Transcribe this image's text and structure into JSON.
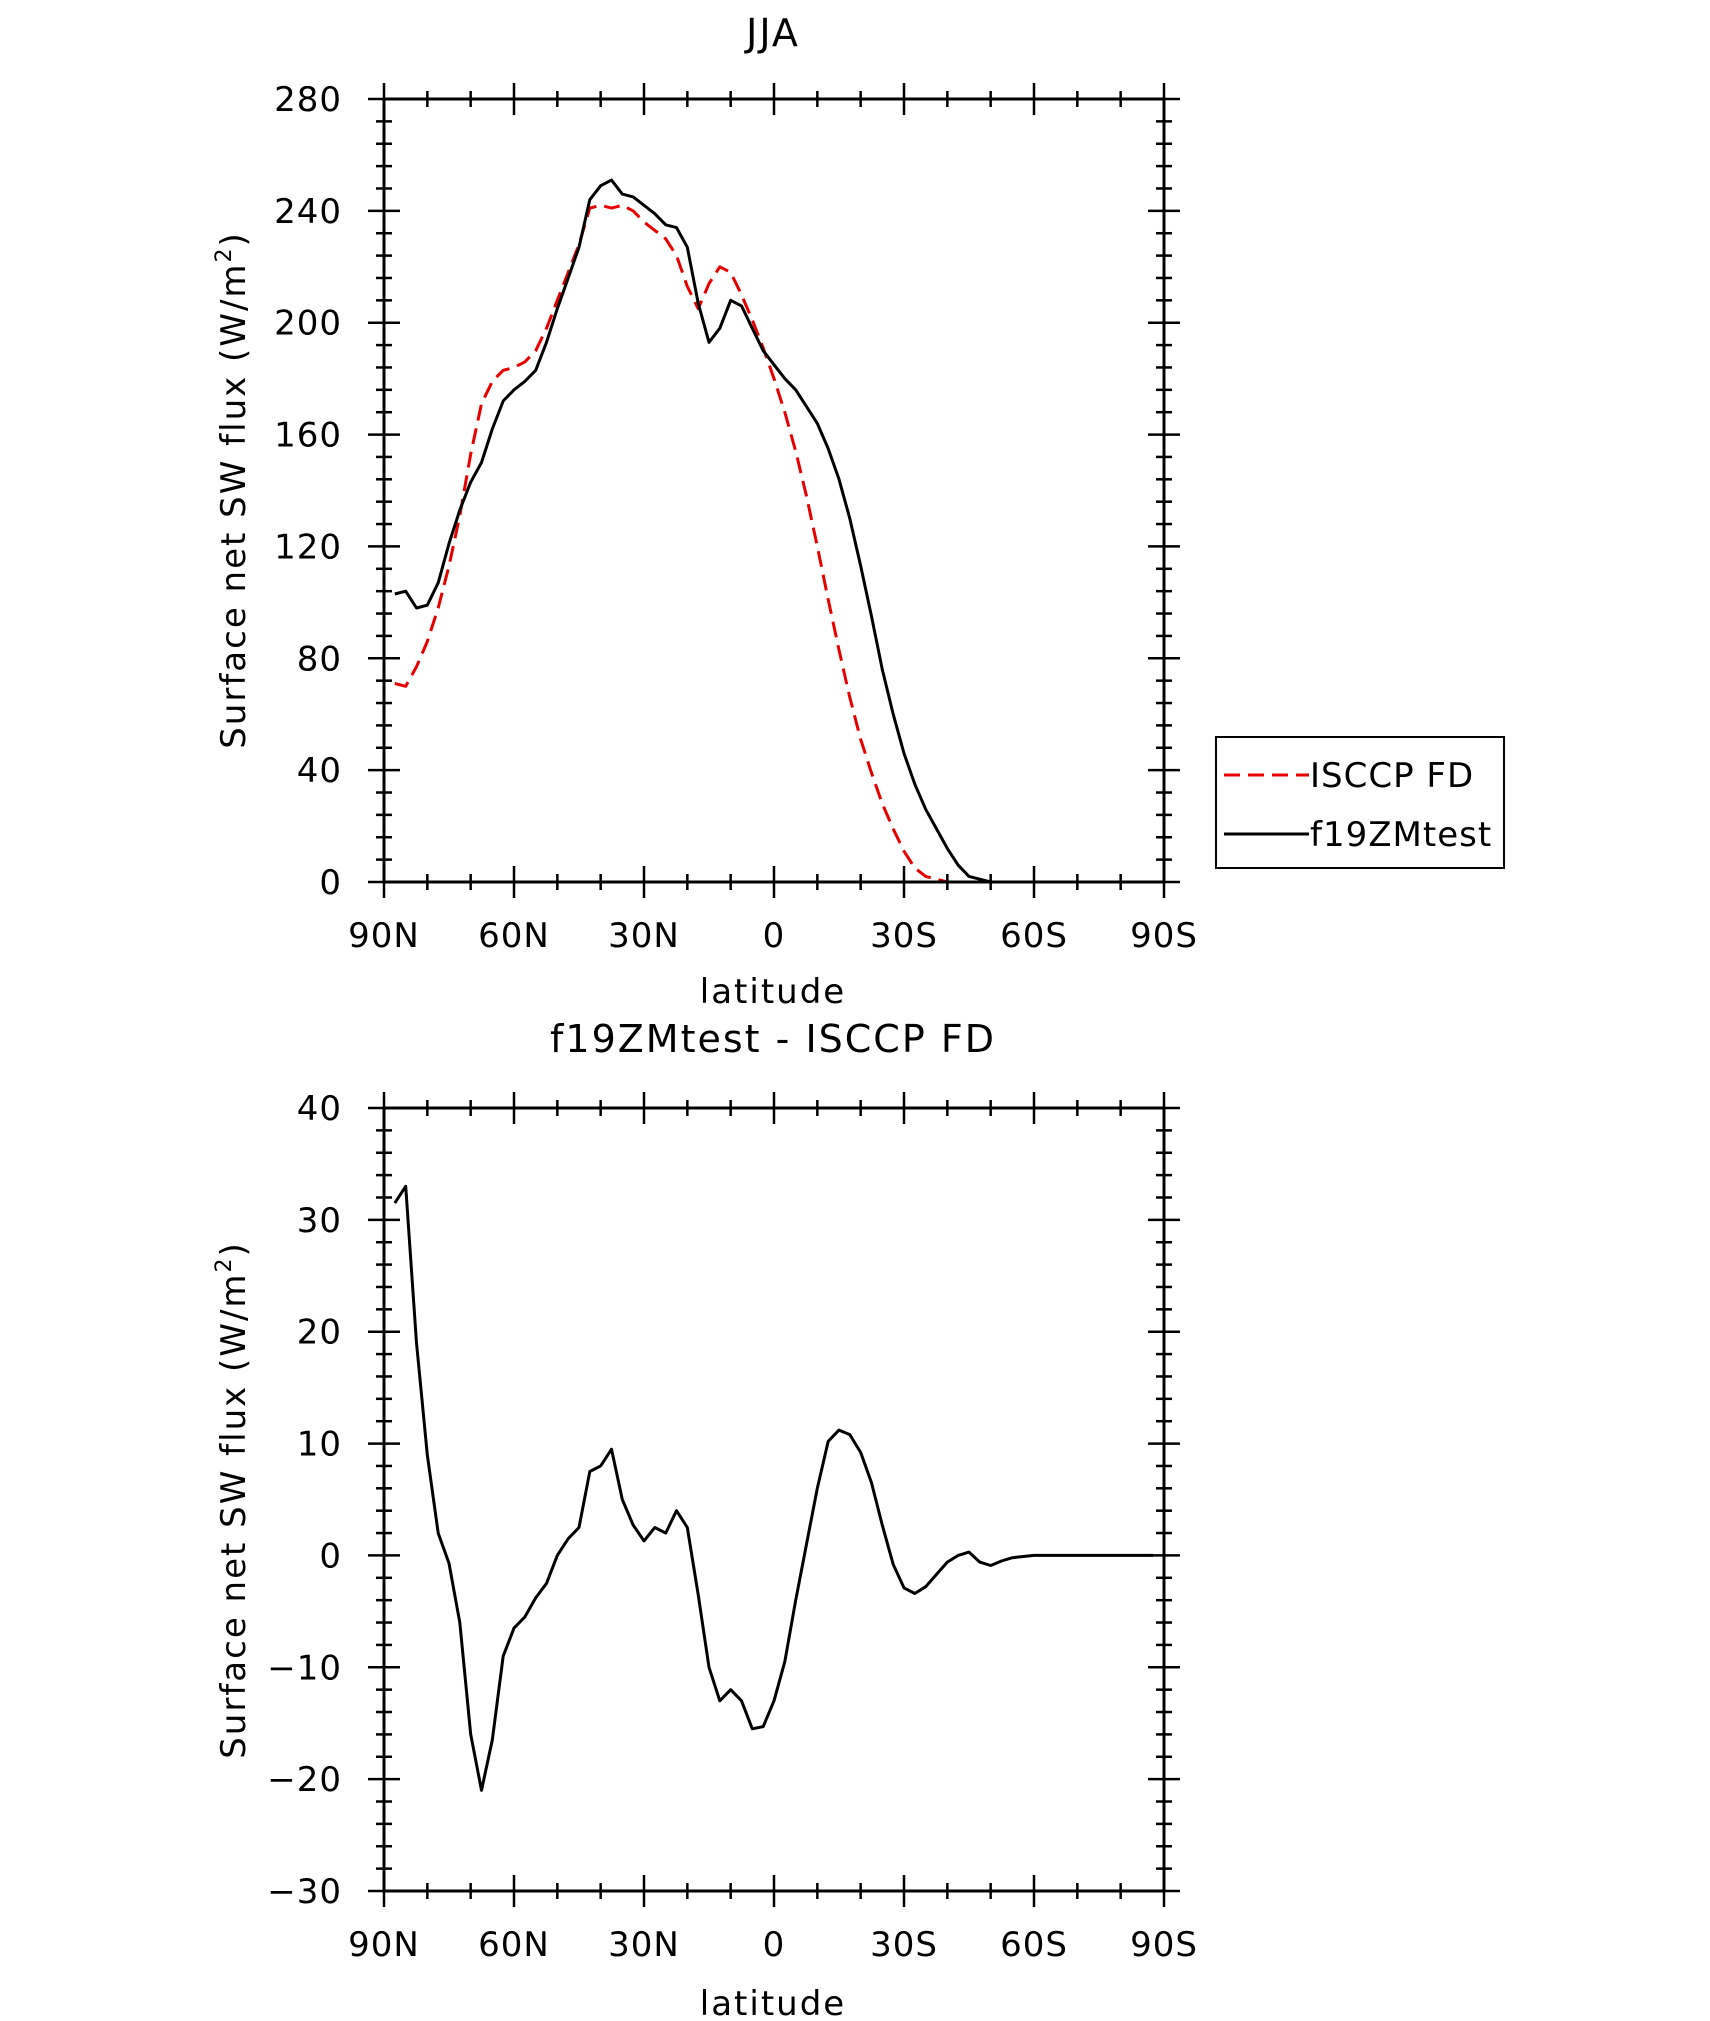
{
  "chart_data": [
    {
      "type": "line",
      "title": "JJA",
      "xlabel": "latitude",
      "ylabel": "Surface net SW flux (W/m2)",
      "ylim": [
        0,
        280
      ],
      "y_ticks": [
        0,
        40,
        80,
        120,
        160,
        200,
        240,
        280
      ],
      "x_ticks": [
        "90N",
        "60N",
        "30N",
        "0",
        "30S",
        "60S",
        "90S"
      ],
      "x_axis": "latitude from 90N (left) to 90S (right)",
      "legend": {
        "placement": "right of plot, lower",
        "entries": [
          "ISCCP FD",
          "f19ZMtest"
        ]
      },
      "series": [
        {
          "name": "ISCCP FD",
          "color": "#e60000",
          "style": "dashed",
          "x": [
            87.5,
            85,
            82.5,
            80,
            77.5,
            75,
            72.5,
            70,
            67.5,
            65,
            62.5,
            60,
            57.5,
            55,
            52.5,
            50,
            47.5,
            45,
            42.5,
            40,
            37.5,
            35,
            32.5,
            30,
            27.5,
            25,
            22.5,
            20,
            17.5,
            15,
            12.5,
            10,
            7.5,
            5,
            2.5,
            0,
            -2.5,
            -5,
            -7.5,
            -10,
            -12.5,
            -15,
            -17.5,
            -20,
            -22.5,
            -25,
            -27.5,
            -30,
            -32.5,
            -35,
            -37.5,
            -40,
            -42.5,
            -45,
            -47.5,
            -50,
            -52.5,
            -55,
            -57.5,
            -60,
            -62.5,
            -65,
            -67.5,
            -70,
            -72.5,
            -75,
            -77.5,
            -80,
            -82.5,
            -85,
            -87.5
          ],
          "y": [
            71,
            70,
            77,
            86,
            98,
            113,
            131,
            153,
            171,
            179,
            183,
            184,
            186,
            190,
            198,
            208,
            218,
            228,
            241,
            242,
            241,
            242,
            240,
            236,
            233,
            230,
            224,
            213,
            205,
            214,
            220,
            218,
            210,
            201,
            191,
            180,
            168,
            154,
            138,
            120,
            101,
            83,
            66,
            51,
            39,
            28,
            19,
            11,
            5,
            2,
            1,
            0,
            0,
            0,
            0,
            0,
            0,
            0,
            0,
            0,
            0,
            0,
            0,
            0,
            0,
            0,
            0,
            0,
            0,
            0,
            0
          ]
        },
        {
          "name": "f19ZMtest",
          "color": "#000000",
          "style": "solid",
          "x": [
            87.5,
            85,
            82.5,
            80,
            77.5,
            75,
            72.5,
            70,
            67.5,
            65,
            62.5,
            60,
            57.5,
            55,
            52.5,
            50,
            47.5,
            45,
            42.5,
            40,
            37.5,
            35,
            32.5,
            30,
            27.5,
            25,
            22.5,
            20,
            17.5,
            15,
            12.5,
            10,
            7.5,
            5,
            2.5,
            0,
            -2.5,
            -5,
            -7.5,
            -10,
            -12.5,
            -15,
            -17.5,
            -20,
            -22.5,
            -25,
            -27.5,
            -30,
            -32.5,
            -35,
            -37.5,
            -40,
            -42.5,
            -45,
            -47.5,
            -50,
            -52.5,
            -55,
            -57.5,
            -60,
            -62.5,
            -65,
            -67.5,
            -70,
            -72.5,
            -75,
            -77.5,
            -80,
            -82.5,
            -85,
            -87.5
          ],
          "y": [
            103,
            104,
            98,
            99,
            107,
            121,
            133,
            143,
            150,
            162,
            172,
            176,
            179,
            183,
            193,
            205,
            216,
            227,
            244,
            249,
            251,
            246,
            245,
            242,
            239,
            235,
            234,
            227,
            207,
            193,
            198,
            208,
            206,
            198,
            190,
            185,
            180,
            176,
            170,
            164,
            155,
            144,
            130,
            113,
            95,
            76,
            60,
            46,
            35,
            26,
            19,
            12,
            6,
            2,
            1,
            0,
            0,
            0,
            0,
            0,
            0,
            0,
            0,
            0,
            0,
            0,
            0,
            0,
            0,
            0,
            0
          ]
        }
      ]
    },
    {
      "type": "line",
      "title": "f19ZMtest - ISCCP FD",
      "xlabel": "latitude",
      "ylabel": "Surface net SW flux (W/m2)",
      "ylim": [
        -30,
        40
      ],
      "y_ticks": [
        -30,
        -20,
        -10,
        0,
        10,
        20,
        30,
        40
      ],
      "x_ticks": [
        "90N",
        "60N",
        "30N",
        "0",
        "30S",
        "60S",
        "90S"
      ],
      "series": [
        {
          "color": "#000000",
          "style": "solid",
          "x": [
            87.5,
            85,
            82.5,
            80,
            77.5,
            75,
            72.5,
            70,
            67.5,
            65,
            62.5,
            60,
            57.5,
            55,
            52.5,
            50,
            47.5,
            45,
            42.5,
            40,
            37.5,
            35,
            32.5,
            30,
            27.5,
            25,
            22.5,
            20,
            17.5,
            15,
            12.5,
            10,
            7.5,
            5,
            2.5,
            0,
            -2.5,
            -5,
            -7.5,
            -10,
            -12.5,
            -15,
            -17.5,
            -20,
            -22.5,
            -25,
            -27.5,
            -30,
            -32.5,
            -35,
            -37.5,
            -40,
            -42.5,
            -45,
            -47.5,
            -50,
            -52.5,
            -55,
            -57.5,
            -60,
            -62.5,
            -65,
            -67.5,
            -70,
            -72.5,
            -75,
            -77.5,
            -80,
            -82.5,
            -85,
            -87.5
          ],
          "y": [
            31.5,
            33,
            19,
            9,
            2,
            -0.7,
            -6,
            -16,
            -21,
            -16.5,
            -9,
            -6.5,
            -5.5,
            -3.8,
            -2.5,
            0,
            1.5,
            2.5,
            7.5,
            8,
            9.5,
            5,
            2.7,
            1.3,
            2.5,
            2,
            4,
            2.5,
            -3.5,
            -10,
            -13,
            -12,
            -13,
            -15.5,
            -15.3,
            -13,
            -9.5,
            -4,
            1,
            6,
            10.2,
            11.2,
            10.8,
            9.2,
            6.5,
            2.7,
            -0.8,
            -2.9,
            -3.4,
            -2.8,
            -1.7,
            -0.6,
            0,
            0.3,
            -0.6,
            -0.9,
            -0.5,
            -0.2,
            -0.1,
            0,
            0,
            0,
            0,
            0,
            0,
            0,
            0,
            0,
            0,
            0,
            0
          ]
        }
      ]
    }
  ]
}
